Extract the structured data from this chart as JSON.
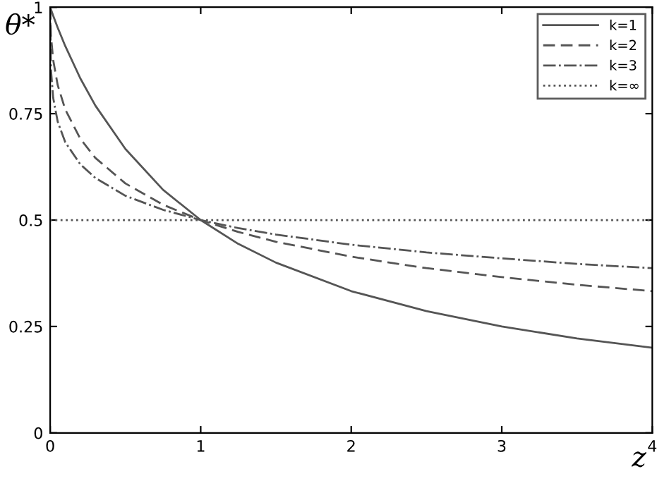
{
  "chart_data": {
    "type": "line",
    "xlabel": "z",
    "ylabel": "θ*",
    "xlim": [
      0,
      4
    ],
    "ylim": [
      0,
      1
    ],
    "xticks": [
      0,
      1,
      2,
      3,
      4
    ],
    "yticks": [
      0,
      0.25,
      0.5,
      0.75,
      1
    ],
    "grid": false,
    "legend": "top right",
    "marker": "none",
    "series": [
      {
        "name": "k=1",
        "color": "#555555",
        "line_style": "solid",
        "x": [
          0,
          0.005,
          0.02,
          0.05,
          0.1,
          0.2,
          0.3,
          0.5,
          0.75,
          1,
          1.25,
          1.5,
          2,
          2.5,
          3,
          3.5,
          4
        ],
        "values": [
          1,
          0.995,
          0.98,
          0.952,
          0.909,
          0.833,
          0.769,
          0.667,
          0.571,
          0.5,
          0.444,
          0.4,
          0.333,
          0.286,
          0.25,
          0.222,
          0.2
        ]
      },
      {
        "name": "k=2",
        "color": "#555555",
        "line_style": "dashed",
        "x": [
          0,
          0.005,
          0.02,
          0.05,
          0.1,
          0.2,
          0.3,
          0.5,
          0.75,
          1,
          1.25,
          1.5,
          2,
          2.5,
          3,
          3.5,
          4
        ],
        "values": [
          1,
          0.934,
          0.876,
          0.817,
          0.76,
          0.691,
          0.646,
          0.586,
          0.536,
          0.5,
          0.472,
          0.449,
          0.414,
          0.387,
          0.366,
          0.348,
          0.333
        ]
      },
      {
        "name": "k=3",
        "color": "#555555",
        "line_style": "dashdot",
        "x": [
          0,
          0.005,
          0.02,
          0.05,
          0.1,
          0.2,
          0.3,
          0.5,
          0.75,
          1,
          1.25,
          1.5,
          2,
          2.5,
          3,
          3.5,
          4
        ],
        "values": [
          1,
          0.854,
          0.787,
          0.731,
          0.683,
          0.631,
          0.599,
          0.557,
          0.524,
          0.5,
          0.481,
          0.466,
          0.442,
          0.424,
          0.41,
          0.397,
          0.387
        ]
      },
      {
        "name": "k=∞",
        "color": "#555555",
        "line_style": "dotted",
        "x": [
          0,
          4
        ],
        "values": [
          0.5,
          0.5
        ]
      }
    ]
  }
}
